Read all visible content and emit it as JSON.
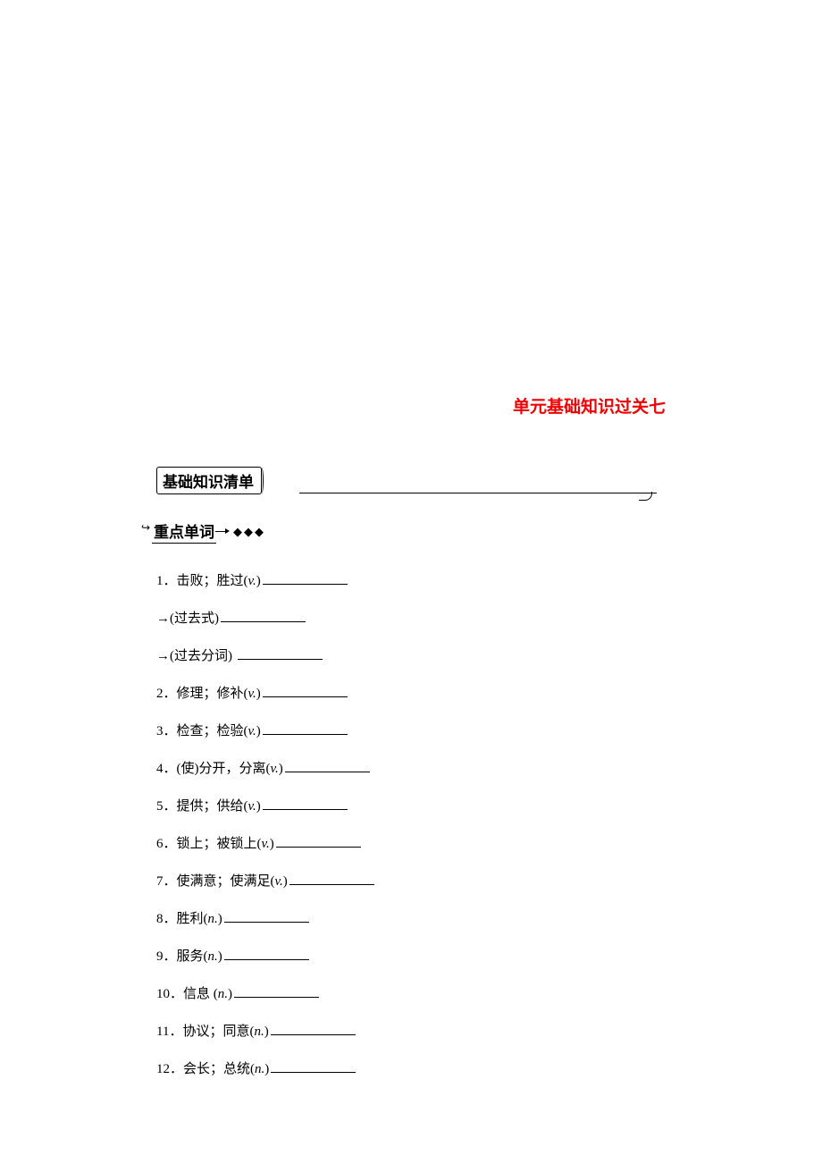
{
  "title": "单元基础知识过关七",
  "section_header": "基础知识清单",
  "subsection_header": "重点单词",
  "diamonds": "◆◆◆",
  "colors": {
    "title_color": "#ee0000",
    "text_color": "#000000",
    "background": "#ffffff"
  },
  "typography": {
    "title_fontsize": 19,
    "header_fontsize": 17,
    "item_fontsize": 15,
    "title_font": "SimHei",
    "body_font": "SimSun"
  },
  "items": [
    {
      "num": "1",
      "text": "．击败；胜过(",
      "pos": "v.",
      "close": ")"
    },
    {
      "num": "",
      "text": "→(过去式)",
      "pos": "",
      "close": ""
    },
    {
      "num": "",
      "text": "→(过去分词) ",
      "pos": "",
      "close": ""
    },
    {
      "num": "2",
      "text": "．修理；修补(",
      "pos": "v.",
      "close": ")"
    },
    {
      "num": "3",
      "text": "．检查；检验(",
      "pos": "v.",
      "close": ")"
    },
    {
      "num": "4",
      "text": "．(使)分开，分离(",
      "pos": "v.",
      "close": ")"
    },
    {
      "num": "5",
      "text": "．提供；供给(",
      "pos": "v.",
      "close": ")"
    },
    {
      "num": "6",
      "text": "．锁上；被锁上(",
      "pos": "v.",
      "close": ")"
    },
    {
      "num": "7",
      "text": "．使满意；使满足(",
      "pos": "v.",
      "close": ")"
    },
    {
      "num": "8",
      "text": "．胜利(",
      "pos": "n.",
      "close": ")"
    },
    {
      "num": "9",
      "text": "．服务(",
      "pos": "n.",
      "close": ")"
    },
    {
      "num": "10",
      "text": "．信息 (",
      "pos": "n.",
      "close": ")"
    },
    {
      "num": "11",
      "text": "．协议；同意(",
      "pos": "n.",
      "close": ")"
    },
    {
      "num": "12",
      "text": "．会长；总统(",
      "pos": "n.",
      "close": ")"
    }
  ]
}
